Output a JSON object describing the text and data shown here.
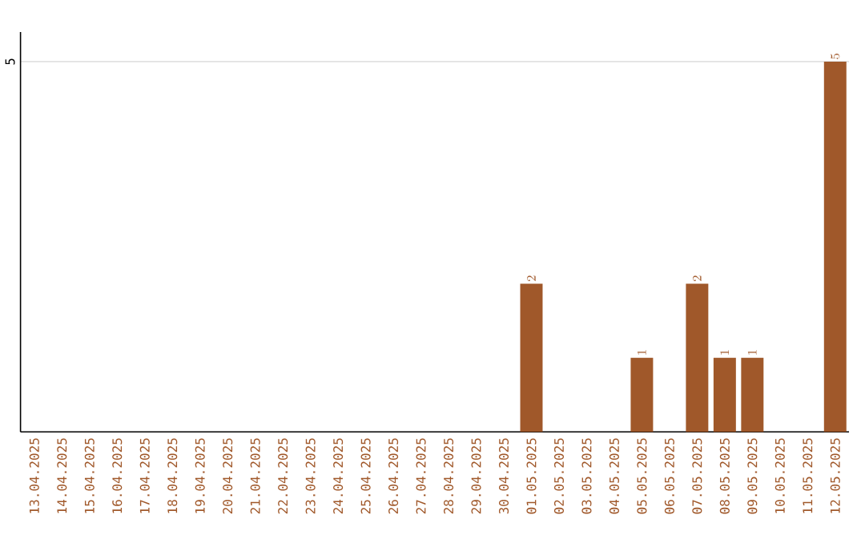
{
  "chart_data": {
    "type": "bar",
    "categories": [
      "13.04.2025",
      "14.04.2025",
      "15.04.2025",
      "16.04.2025",
      "17.04.2025",
      "18.04.2025",
      "19.04.2025",
      "20.04.2025",
      "21.04.2025",
      "22.04.2025",
      "23.04.2025",
      "24.04.2025",
      "25.04.2025",
      "26.04.2025",
      "27.04.2025",
      "28.04.2025",
      "29.04.2025",
      "30.04.2025",
      "01.05.2025",
      "02.05.2025",
      "03.05.2025",
      "04.05.2025",
      "05.05.2025",
      "06.05.2025",
      "07.05.2025",
      "08.05.2025",
      "09.05.2025",
      "10.05.2025",
      "11.05.2025",
      "12.05.2025"
    ],
    "values": [
      null,
      null,
      null,
      null,
      null,
      null,
      null,
      null,
      null,
      null,
      null,
      null,
      null,
      null,
      null,
      null,
      null,
      null,
      2,
      null,
      null,
      null,
      1,
      null,
      2,
      1,
      1,
      null,
      null,
      5
    ],
    "color": "#a0582a",
    "ylim": [
      0,
      5.4
    ],
    "yticks": [
      5
    ],
    "grid": "y",
    "data_labels": true
  }
}
